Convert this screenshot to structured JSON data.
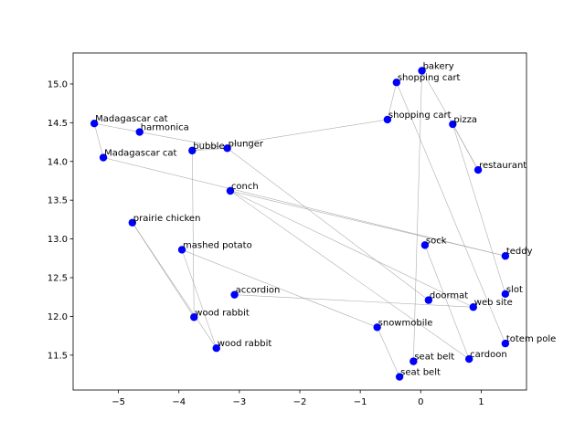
{
  "chart_data": {
    "type": "scatter",
    "title": "",
    "xlabel": "",
    "ylabel": "",
    "xlim": [
      -5.75,
      1.75
    ],
    "ylim": [
      11.05,
      15.4
    ],
    "grid": false,
    "x_ticks": [
      -5,
      -4,
      -3,
      -2,
      -1,
      0,
      1
    ],
    "x_tick_labels": [
      "−5",
      "−4",
      "−3",
      "−2",
      "−1",
      "0",
      "1"
    ],
    "y_ticks": [
      11.5,
      12.0,
      12.5,
      13.0,
      13.5,
      14.0,
      14.5,
      15.0
    ],
    "y_tick_labels": [
      "11.5",
      "12.0",
      "12.5",
      "13.0",
      "13.5",
      "14.0",
      "14.5",
      "15.0"
    ],
    "point_color": "#0000ff",
    "edge_color": "#999999",
    "points": [
      {
        "label": "bakery",
        "x": 0.02,
        "y": 15.17
      },
      {
        "label": "shopping cart",
        "x": -0.4,
        "y": 15.02
      },
      {
        "label": "shopping cart",
        "x": -0.55,
        "y": 14.54
      },
      {
        "label": "pizza",
        "x": 0.53,
        "y": 14.48
      },
      {
        "label": "restaurant",
        "x": 0.95,
        "y": 13.89
      },
      {
        "label": "Madagascar cat",
        "x": -5.4,
        "y": 14.49
      },
      {
        "label": "harmonica",
        "x": -4.65,
        "y": 14.38
      },
      {
        "label": "Madagascar cat",
        "x": -5.25,
        "y": 14.05
      },
      {
        "label": "bubble",
        "x": -3.78,
        "y": 14.14
      },
      {
        "label": "plunger",
        "x": -3.2,
        "y": 14.17
      },
      {
        "label": "conch",
        "x": -3.15,
        "y": 13.62
      },
      {
        "label": "prairie chicken",
        "x": -4.77,
        "y": 13.21
      },
      {
        "label": "mashed potato",
        "x": -3.95,
        "y": 12.86
      },
      {
        "label": "sock",
        "x": 0.07,
        "y": 12.92
      },
      {
        "label": "teddy",
        "x": 1.4,
        "y": 12.78
      },
      {
        "label": "accordion",
        "x": -3.08,
        "y": 12.28
      },
      {
        "label": "slot",
        "x": 1.4,
        "y": 12.29
      },
      {
        "label": "doormat",
        "x": 0.13,
        "y": 12.21
      },
      {
        "label": "web site",
        "x": 0.87,
        "y": 12.12
      },
      {
        "label": "wood rabbit",
        "x": -3.75,
        "y": 11.99
      },
      {
        "label": "snowmobile",
        "x": -0.72,
        "y": 11.86
      },
      {
        "label": "totem pole",
        "x": 1.4,
        "y": 11.65
      },
      {
        "label": "wood rabbit",
        "x": -3.38,
        "y": 11.59
      },
      {
        "label": "cardoon",
        "x": 0.8,
        "y": 11.45
      },
      {
        "label": "seat belt",
        "x": -0.12,
        "y": 11.42
      },
      {
        "label": "seat belt",
        "x": -0.35,
        "y": 11.22
      }
    ],
    "edges": [
      [
        0,
        3
      ],
      [
        0,
        24
      ],
      [
        1,
        2
      ],
      [
        1,
        21
      ],
      [
        3,
        4
      ],
      [
        3,
        16
      ],
      [
        4,
        3
      ],
      [
        5,
        6
      ],
      [
        5,
        7
      ],
      [
        6,
        9
      ],
      [
        7,
        14
      ],
      [
        8,
        9
      ],
      [
        8,
        19
      ],
      [
        9,
        17
      ],
      [
        10,
        18
      ],
      [
        10,
        23
      ],
      [
        11,
        19
      ],
      [
        11,
        22
      ],
      [
        12,
        20
      ],
      [
        13,
        23
      ],
      [
        14,
        10
      ],
      [
        15,
        18
      ],
      [
        20,
        25
      ],
      [
        22,
        12
      ],
      [
        2,
        8
      ]
    ]
  }
}
